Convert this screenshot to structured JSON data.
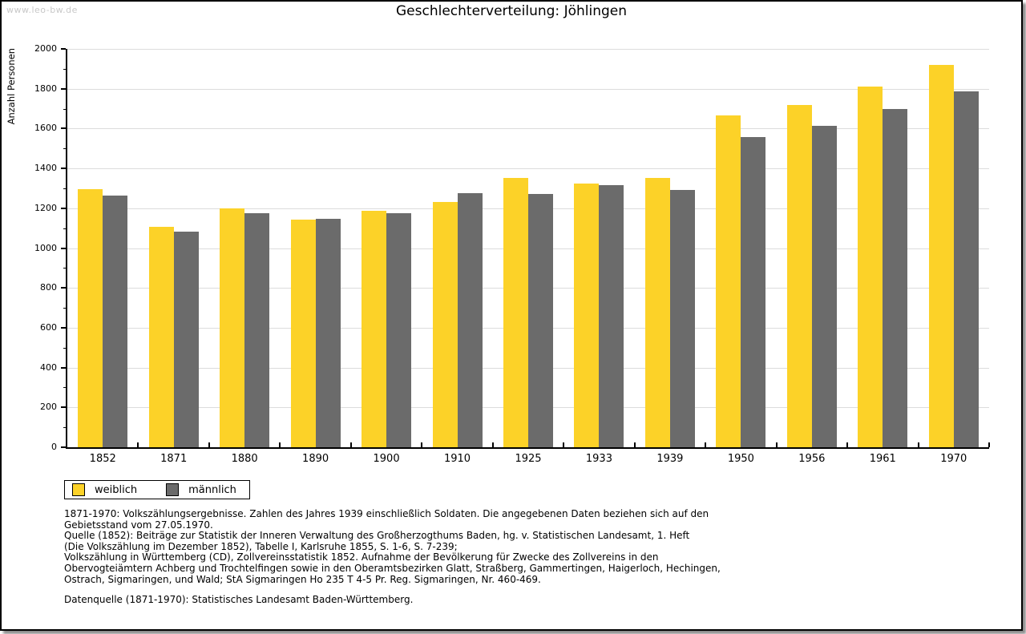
{
  "watermark": "www.leo-bw.de",
  "title": "Geschlechterverteilung: Jöhlingen",
  "chart_data": {
    "type": "bar",
    "title": "Geschlechterverteilung: Jöhlingen",
    "xlabel": "",
    "ylabel": "Anzahl Personen",
    "ylim": [
      0,
      2000
    ],
    "ytick_step": 200,
    "yminor_step": 100,
    "grid": true,
    "legend_position": "bottom-left",
    "categories": [
      "1852",
      "1871",
      "1880",
      "1890",
      "1900",
      "1910",
      "1925",
      "1933",
      "1939",
      "1950",
      "1956",
      "1961",
      "1970"
    ],
    "series": [
      {
        "name": "weiblich",
        "color": "#FCD228",
        "values": [
          1294,
          1106,
          1198,
          1142,
          1189,
          1231,
          1351,
          1326,
          1351,
          1666,
          1719,
          1809,
          1918
        ]
      },
      {
        "name": "männlich",
        "color": "#6B6B6B",
        "values": [
          1264,
          1084,
          1174,
          1146,
          1177,
          1277,
          1273,
          1314,
          1293,
          1559,
          1613,
          1699,
          1786
        ]
      }
    ]
  },
  "footnotes": [
    "1871-1970: Volkszählungsergebnisse. Zahlen des Jahres 1939 einschließlich Soldaten. Die angegebenen Daten beziehen sich auf den",
    "Gebietsstand vom 27.05.1970.",
    "Quelle (1852): Beiträge zur Statistik der Inneren Verwaltung des Großherzogthums Baden, hg. v. Statistischen Landesamt, 1. Heft",
    "(Die Volkszählung im Dezember 1852), Tabelle I, Karlsruhe 1855, S. 1-6, S. 7-239;",
    "Volkszählung in Württemberg (CD), Zollvereinsstatistik 1852. Aufnahme der Bevölkerung für Zwecke des Zollvereins in den",
    "Obervogteiämtern Achberg und Trochtelfingen sowie in den Oberamtsbezirken Glatt, Straßberg, Gammertingen, Haigerloch, Hechingen,",
    "Ostrach, Sigmaringen, und Wald; StA Sigmaringen Ho 235 T 4-5 Pr. Reg. Sigmaringen, Nr. 460-469."
  ],
  "datasource": "Datenquelle (1871-1970): Statistisches Landesamt Baden-Württemberg."
}
